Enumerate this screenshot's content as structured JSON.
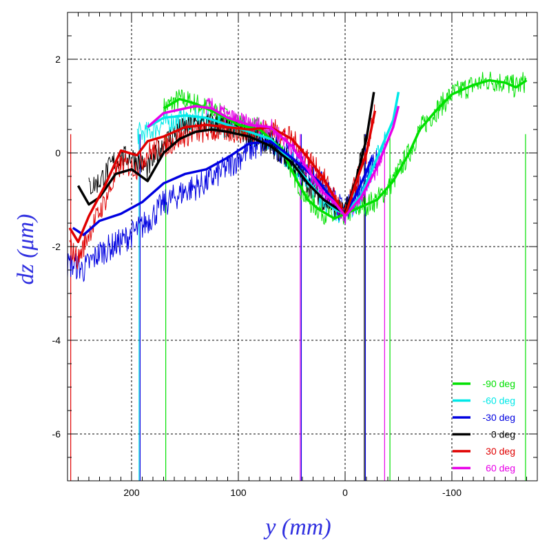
{
  "chart_data": {
    "type": "line",
    "title": "",
    "xlabel": "y (mm)",
    "ylabel": "dz (μm)",
    "xlim": [
      260,
      -180
    ],
    "ylim": [
      -7,
      3
    ],
    "x_ticks": [
      200,
      100,
      0,
      -100
    ],
    "x_tick_labels": [
      "200",
      "100",
      "0",
      "-100"
    ],
    "y_ticks": [
      2,
      0,
      -2,
      -4,
      -6
    ],
    "y_tick_labels": [
      "2",
      "0",
      "-2",
      "-4",
      "-6"
    ],
    "grid": true,
    "legend_position": "bottom-right",
    "series": [
      {
        "name": "-90 deg",
        "color": "#00e000",
        "smooth": [
          [
            170,
            0.95
          ],
          [
            155,
            1.15
          ],
          [
            140,
            1.05
          ],
          [
            120,
            0.85
          ],
          [
            100,
            0.6
          ],
          [
            80,
            0.5
          ],
          [
            60,
            0.1
          ],
          [
            45,
            -0.6
          ],
          [
            35,
            -1.0
          ],
          [
            25,
            -1.2
          ],
          [
            10,
            -1.4
          ],
          [
            0,
            -1.3
          ],
          [
            -10,
            -1.2
          ],
          [
            -30,
            -1.0
          ],
          [
            -45,
            -0.6
          ],
          [
            -60,
            0.0
          ],
          [
            -70,
            0.5
          ],
          [
            -85,
            0.9
          ],
          [
            -100,
            1.25
          ],
          [
            -120,
            1.45
          ],
          [
            -135,
            1.55
          ],
          [
            -150,
            1.5
          ],
          [
            -160,
            1.4
          ],
          [
            -170,
            1.55
          ]
        ],
        "raw_range": [
          170,
          -170
        ],
        "raw_noise": 0.25,
        "raw_offset": 0
      },
      {
        "name": "-60 deg",
        "color": "#00e8e8",
        "smooth": [
          [
            185,
            0.55
          ],
          [
            170,
            0.75
          ],
          [
            150,
            0.8
          ],
          [
            130,
            0.75
          ],
          [
            110,
            0.6
          ],
          [
            90,
            0.45
          ],
          [
            70,
            0.3
          ],
          [
            50,
            -0.2
          ],
          [
            35,
            -0.6
          ],
          [
            20,
            -1.0
          ],
          [
            10,
            -1.2
          ],
          [
            0,
            -1.3
          ],
          [
            -15,
            -0.9
          ],
          [
            -30,
            -0.1
          ],
          [
            -45,
            0.7
          ],
          [
            -50,
            1.3
          ]
        ],
        "raw_range": [
          195,
          -40
        ],
        "raw_noise": 0.25,
        "raw_offset": -0.2
      },
      {
        "name": "-30 deg",
        "color": "#0000e0",
        "smooth": [
          [
            255,
            -1.6
          ],
          [
            245,
            -1.75
          ],
          [
            230,
            -1.45
          ],
          [
            210,
            -1.3
          ],
          [
            190,
            -1.05
          ],
          [
            170,
            -0.65
          ],
          [
            150,
            -0.45
          ],
          [
            130,
            -0.35
          ],
          [
            110,
            -0.1
          ],
          [
            90,
            0.2
          ],
          [
            70,
            0.25
          ],
          [
            50,
            -0.1
          ],
          [
            35,
            -0.4
          ],
          [
            25,
            -0.6
          ],
          [
            15,
            -0.9
          ],
          [
            0,
            -1.3
          ],
          [
            -10,
            -0.9
          ],
          [
            -20,
            -0.4
          ],
          [
            -25,
            -0.1
          ]
        ],
        "raw_range": [
          260,
          -30
        ],
        "raw_noise": 0.3,
        "raw_offset": -0.8
      },
      {
        "name": "0 deg",
        "color": "#000000",
        "smooth": [
          [
            250,
            -0.7
          ],
          [
            240,
            -1.1
          ],
          [
            230,
            -0.95
          ],
          [
            215,
            -0.45
          ],
          [
            200,
            -0.35
          ],
          [
            185,
            -0.6
          ],
          [
            170,
            0.0
          ],
          [
            155,
            0.3
          ],
          [
            140,
            0.45
          ],
          [
            125,
            0.5
          ],
          [
            110,
            0.45
          ],
          [
            90,
            0.35
          ],
          [
            70,
            0.15
          ],
          [
            50,
            -0.2
          ],
          [
            35,
            -0.65
          ],
          [
            20,
            -1.0
          ],
          [
            10,
            -1.15
          ],
          [
            0,
            -1.3
          ],
          [
            -10,
            -0.6
          ],
          [
            -20,
            0.3
          ],
          [
            -27,
            1.3
          ]
        ],
        "raw_range": [
          240,
          -20
        ],
        "raw_noise": 0.25,
        "raw_offset": 0.4
      },
      {
        "name": "30 deg",
        "color": "#e00000",
        "smooth": [
          [
            258,
            -1.6
          ],
          [
            250,
            -1.9
          ],
          [
            240,
            -1.35
          ],
          [
            225,
            -0.7
          ],
          [
            210,
            0.05
          ],
          [
            195,
            -0.05
          ],
          [
            185,
            0.25
          ],
          [
            170,
            0.35
          ],
          [
            150,
            0.55
          ],
          [
            130,
            0.6
          ],
          [
            110,
            0.55
          ],
          [
            90,
            0.5
          ],
          [
            70,
            0.55
          ],
          [
            50,
            0.3
          ],
          [
            35,
            -0.1
          ],
          [
            20,
            -0.55
          ],
          [
            10,
            -0.95
          ],
          [
            0,
            -1.35
          ],
          [
            -10,
            -0.65
          ],
          [
            -20,
            0.0
          ],
          [
            -28,
            0.9
          ]
        ],
        "raw_range": [
          258,
          -28
        ],
        "raw_noise": 0.25,
        "raw_offset": -0.4
      },
      {
        "name": "60 deg",
        "color": "#e800e8",
        "smooth": [
          [
            185,
            0.55
          ],
          [
            170,
            0.85
          ],
          [
            150,
            0.95
          ],
          [
            140,
            1.0
          ],
          [
            125,
            0.95
          ],
          [
            110,
            0.75
          ],
          [
            90,
            0.6
          ],
          [
            70,
            0.55
          ],
          [
            50,
            0.15
          ],
          [
            35,
            -0.35
          ],
          [
            20,
            -0.85
          ],
          [
            10,
            -1.05
          ],
          [
            0,
            -1.35
          ],
          [
            -15,
            -0.95
          ],
          [
            -30,
            -0.3
          ],
          [
            -45,
            0.55
          ],
          [
            -50,
            1.0
          ]
        ],
        "raw_range": [
          130,
          -35
        ],
        "raw_noise": 0.2,
        "raw_offset": 0.1
      }
    ],
    "drop_lines": [
      {
        "x": 257,
        "color": "#e00000"
      },
      {
        "x": 193,
        "color": "#00e8e8"
      },
      {
        "x": 192,
        "color": "#0000e0"
      },
      {
        "x": 168,
        "color": "#00e000"
      },
      {
        "x": 42,
        "color": "#e800e8"
      },
      {
        "x": 41,
        "color": "#0000e0"
      },
      {
        "x": -18,
        "color": "#000000"
      },
      {
        "x": -19,
        "color": "#0000e0"
      },
      {
        "x": -37,
        "color": "#e800e8"
      },
      {
        "x": -42,
        "color": "#00e000"
      },
      {
        "x": -169,
        "color": "#00e000"
      }
    ]
  }
}
